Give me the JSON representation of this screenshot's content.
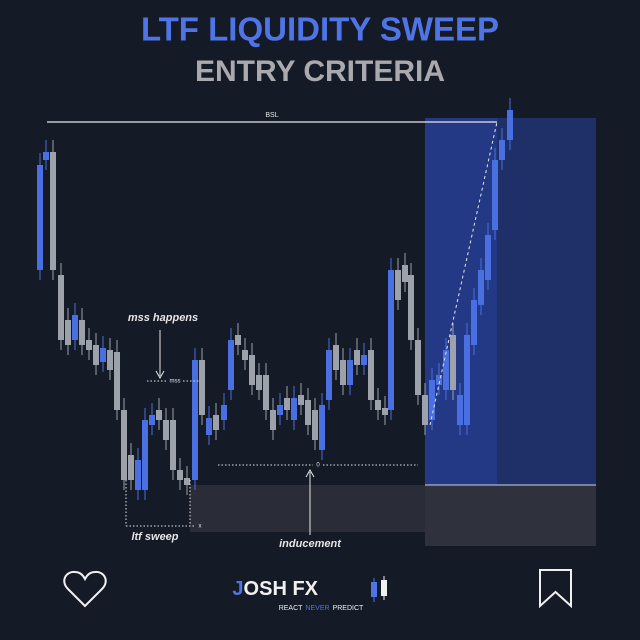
{
  "header": {
    "title": "LTF LIQUIDITY SWEEP",
    "subtitle": "ENTRY CRITERIA"
  },
  "annotations": {
    "bsl": "BSL",
    "mss_happens": "mss happens",
    "mss": "mss",
    "ltf_sweep": "ltf sweep",
    "sweep_mark": "x",
    "inducement": "inducement",
    "inducement_mark": "0"
  },
  "footer": {
    "logo_first": "J",
    "logo_rest": "OSH FX",
    "tagline": [
      "REACT",
      "NEVER",
      "PREDICT"
    ]
  }
}
